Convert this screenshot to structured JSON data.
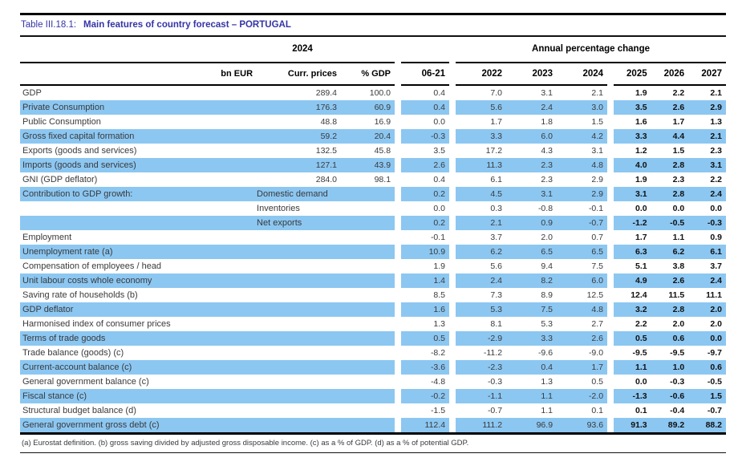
{
  "title": {
    "prefix": "Table III.18.1:",
    "main": "Main features of country forecast – PORTUGAL"
  },
  "header": {
    "group_2024": "2024",
    "group_apc": "Annual percentage change",
    "col_bn_eur": "bn EUR",
    "col_curr_prices": "Curr. prices",
    "col_pct_gdp": "% GDP",
    "col_0621": "06-21",
    "years": [
      "2022",
      "2023",
      "2024",
      "2025",
      "2026",
      "2027"
    ]
  },
  "table": {
    "rows": [
      {
        "label": "GDP",
        "sublabel": "",
        "shaded": false,
        "values": [
          "289.4",
          "100.0",
          "0.4",
          "7.0",
          "3.1",
          "2.1",
          "1.9",
          "2.2",
          "2.1"
        ]
      },
      {
        "label": "Private Consumption",
        "sublabel": "",
        "shaded": true,
        "values": [
          "176.3",
          "60.9",
          "0.4",
          "5.6",
          "2.4",
          "3.0",
          "3.5",
          "2.6",
          "2.9"
        ]
      },
      {
        "label": "Public Consumption",
        "sublabel": "",
        "shaded": false,
        "values": [
          "48.8",
          "16.9",
          "0.0",
          "1.7",
          "1.8",
          "1.5",
          "1.6",
          "1.7",
          "1.3"
        ]
      },
      {
        "label": "Gross fixed capital formation",
        "sublabel": "",
        "shaded": true,
        "values": [
          "59.2",
          "20.4",
          "-0.3",
          "3.3",
          "6.0",
          "4.2",
          "3.3",
          "4.4",
          "2.1"
        ]
      },
      {
        "label": "Exports (goods and services)",
        "sublabel": "",
        "shaded": false,
        "values": [
          "132.5",
          "45.8",
          "3.5",
          "17.2",
          "4.3",
          "3.1",
          "1.2",
          "1.5",
          "2.3"
        ]
      },
      {
        "label": "Imports (goods and services)",
        "sublabel": "",
        "shaded": true,
        "values": [
          "127.1",
          "43.9",
          "2.6",
          "11.3",
          "2.3",
          "4.8",
          "4.0",
          "2.8",
          "3.1"
        ]
      },
      {
        "label": "GNI (GDP deflator)",
        "sublabel": "",
        "shaded": false,
        "values": [
          "284.0",
          "98.1",
          "0.4",
          "6.1",
          "2.3",
          "2.9",
          "1.9",
          "2.3",
          "2.2"
        ]
      },
      {
        "label": "Contribution to GDP growth:",
        "sublabel": "Domestic demand",
        "shaded": true,
        "values": [
          "",
          "",
          "0.2",
          "4.5",
          "3.1",
          "2.9",
          "3.1",
          "2.8",
          "2.4"
        ]
      },
      {
        "label": "",
        "sublabel": "Inventories",
        "shaded": false,
        "values": [
          "",
          "",
          "0.0",
          "0.3",
          "-0.8",
          "-0.1",
          "0.0",
          "0.0",
          "0.0"
        ]
      },
      {
        "label": "",
        "sublabel": "Net exports",
        "shaded": true,
        "values": [
          "",
          "",
          "0.2",
          "2.1",
          "0.9",
          "-0.7",
          "-1.2",
          "-0.5",
          "-0.3"
        ]
      },
      {
        "label": "Employment",
        "sublabel": "",
        "shaded": false,
        "values": [
          "",
          "",
          "-0.1",
          "3.7",
          "2.0",
          "0.7",
          "1.7",
          "1.1",
          "0.9"
        ]
      },
      {
        "label": "Unemployment rate (a)",
        "sublabel": "",
        "shaded": true,
        "values": [
          "",
          "",
          "10.9",
          "6.2",
          "6.5",
          "6.5",
          "6.3",
          "6.2",
          "6.1"
        ]
      },
      {
        "label": "Compensation of employees / head",
        "sublabel": "",
        "shaded": false,
        "values": [
          "",
          "",
          "1.9",
          "5.6",
          "9.4",
          "7.5",
          "5.1",
          "3.8",
          "3.7"
        ]
      },
      {
        "label": "Unit labour costs whole economy",
        "sublabel": "",
        "shaded": true,
        "values": [
          "",
          "",
          "1.4",
          "2.4",
          "8.2",
          "6.0",
          "4.9",
          "2.6",
          "2.4"
        ]
      },
      {
        "label": "Saving rate of households (b)",
        "sublabel": "",
        "shaded": false,
        "values": [
          "",
          "",
          "8.5",
          "7.3",
          "8.9",
          "12.5",
          "12.4",
          "11.5",
          "11.1"
        ]
      },
      {
        "label": "GDP deflator",
        "sublabel": "",
        "shaded": true,
        "values": [
          "",
          "",
          "1.6",
          "5.3",
          "7.5",
          "4.8",
          "3.2",
          "2.8",
          "2.0"
        ]
      },
      {
        "label": "Harmonised index of consumer prices",
        "sublabel": "",
        "shaded": false,
        "values": [
          "",
          "",
          "1.3",
          "8.1",
          "5.3",
          "2.7",
          "2.2",
          "2.0",
          "2.0"
        ]
      },
      {
        "label": "Terms of trade goods",
        "sublabel": "",
        "shaded": true,
        "values": [
          "",
          "",
          "0.5",
          "-2.9",
          "3.3",
          "2.6",
          "0.5",
          "0.6",
          "0.0"
        ]
      },
      {
        "label": "Trade balance (goods) (c)",
        "sublabel": "",
        "shaded": false,
        "values": [
          "",
          "",
          "-8.2",
          "-11.2",
          "-9.6",
          "-9.0",
          "-9.5",
          "-9.5",
          "-9.7"
        ]
      },
      {
        "label": "Current-account balance (c)",
        "sublabel": "",
        "shaded": true,
        "values": [
          "",
          "",
          "-3.6",
          "-2.3",
          "0.4",
          "1.7",
          "1.1",
          "1.0",
          "0.6"
        ]
      },
      {
        "label": "General government balance (c)",
        "sublabel": "",
        "shaded": false,
        "values": [
          "",
          "",
          "-4.8",
          "-0.3",
          "1.3",
          "0.5",
          "0.0",
          "-0.3",
          "-0.5"
        ]
      },
      {
        "label": "Fiscal stance (c)",
        "sublabel": "",
        "shaded": true,
        "values": [
          "",
          "",
          "-0.2",
          "-1.1",
          "1.1",
          "-2.0",
          "-1.3",
          "-0.6",
          "1.5"
        ]
      },
      {
        "label": "Structural budget balance (d)",
        "sublabel": "",
        "shaded": false,
        "values": [
          "",
          "",
          "-1.5",
          "-0.7",
          "1.1",
          "0.1",
          "0.1",
          "-0.4",
          "-0.7"
        ]
      },
      {
        "label": "General government gross debt (c)",
        "sublabel": "",
        "shaded": true,
        "values": [
          "",
          "",
          "112.4",
          "111.2",
          "96.9",
          "93.6",
          "91.3",
          "89.2",
          "88.2"
        ]
      }
    ]
  },
  "footnote": "(a) Eurostat definition.  (b) gross saving divided by adjusted gross disposable income.  (c) as a % of GDP. (d) as a % of potential GDP.",
  "colors": {
    "row_highlight": "#8CC7F2",
    "title_color": "#3434A6",
    "rule_color": "#000000"
  }
}
